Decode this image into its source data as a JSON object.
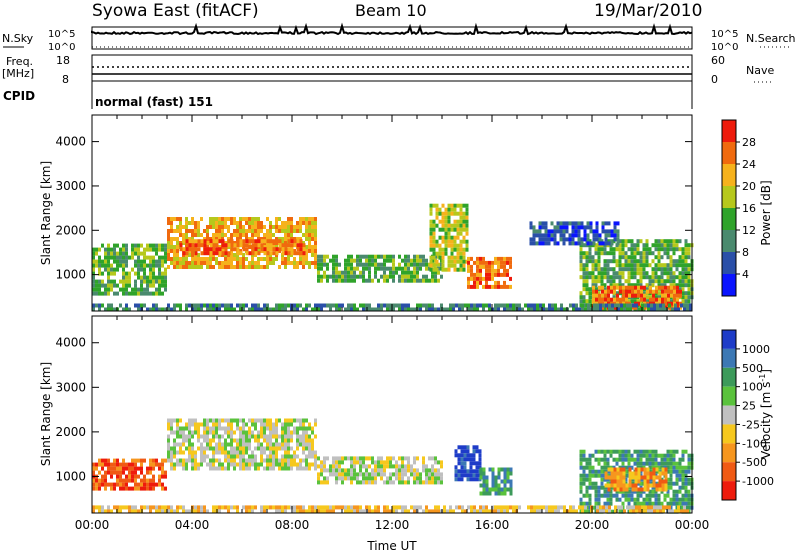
{
  "header": {
    "station": "Syowa East (fitACF)",
    "beam": "Beam 10",
    "date": "19/Mar/2010"
  },
  "top_panels": {
    "nsky_label": "N.Sky",
    "nsky_ticks": [
      "10^5",
      "10^0"
    ],
    "nsearch_label": "N.Search",
    "nsearch_ticks": [
      "10^5",
      "10^0"
    ],
    "freq_label_1": "Freq.",
    "freq_label_2": "[MHz]",
    "freq_ticks": [
      "18",
      "8"
    ],
    "nave_label": "Nave",
    "nave_ticks": [
      "60",
      "0"
    ],
    "cpid_label": "CPID",
    "cpid_value": "normal (fast) 151"
  },
  "chart_data": [
    {
      "type": "heatmap",
      "name": "power",
      "title": "",
      "xlabel": "",
      "ylabel": "Slant Range [km]",
      "xlim": [
        0,
        24
      ],
      "ylim": [
        180,
        4600
      ],
      "yticks": [
        "1000",
        "2000",
        "3000",
        "4000"
      ],
      "colorbar_label": "Power [dB]",
      "colorbar_ticks": [
        "4",
        "8",
        "12",
        "16",
        "20",
        "24",
        "28"
      ],
      "colors": [
        "#0a14ff",
        "#2a4fa8",
        "#4a8a6e",
        "#2fa32a",
        "#b6c81c",
        "#f6b21c",
        "#f06a0e",
        "#ee1b0c"
      ],
      "regions": [
        {
          "t0": 0.0,
          "t1": 3.0,
          "r0": 600,
          "r1": 1700,
          "level": 3
        },
        {
          "t0": 3.0,
          "t1": 9.0,
          "r0": 1200,
          "r1": 2300,
          "level": 5
        },
        {
          "t0": 3.5,
          "t1": 8.5,
          "r0": 1450,
          "r1": 1800,
          "level": 6
        },
        {
          "t0": 9.0,
          "t1": 14.0,
          "r0": 850,
          "r1": 1450,
          "level": 3
        },
        {
          "t0": 13.5,
          "t1": 15.0,
          "r0": 1100,
          "r1": 2600,
          "level": 4
        },
        {
          "t0": 15.0,
          "t1": 16.8,
          "r0": 700,
          "r1": 1400,
          "level": 6
        },
        {
          "t0": 19.5,
          "t1": 24.0,
          "r0": 250,
          "r1": 1800,
          "level": 3
        },
        {
          "t0": 20.0,
          "t1": 23.5,
          "r0": 250,
          "r1": 750,
          "level": 6
        },
        {
          "t0": 17.5,
          "t1": 21.0,
          "r0": 1700,
          "r1": 2200,
          "level": 1
        },
        {
          "t0": 0.0,
          "t1": 24.0,
          "r0": 180,
          "r1": 350,
          "level": 2
        }
      ]
    },
    {
      "type": "heatmap",
      "name": "velocity",
      "title": "",
      "xlabel": "Time UT",
      "ylabel": "Slant Range [km]",
      "xlim": [
        0,
        24
      ],
      "ylim": [
        180,
        4600
      ],
      "xticks": [
        "00:00",
        "04:00",
        "08:00",
        "12:00",
        "16:00",
        "20:00",
        "00:00"
      ],
      "yticks": [
        "1000",
        "2000",
        "3000",
        "4000"
      ],
      "colorbar_label": "Velocity [m s",
      "colorbar_exponent": "-1",
      "colorbar_unit_close": "]",
      "colorbar_ticks": [
        "1000",
        "500",
        "100",
        "25",
        "-25",
        "-100",
        "-500",
        "-1000"
      ],
      "colors": [
        "#1e3cc8",
        "#3c78b4",
        "#3c9a5a",
        "#5ac23c",
        "#c0c0c0",
        "#f6c81e",
        "#f6961e",
        "#f05a14",
        "#ee1b0c"
      ],
      "regions": [
        {
          "t0": 0.0,
          "t1": 3.0,
          "r0": 700,
          "r1": 1400,
          "level": 7
        },
        {
          "t0": 3.0,
          "t1": 9.0,
          "r0": 1200,
          "r1": 2300,
          "level": 4
        },
        {
          "t0": 9.0,
          "t1": 14.0,
          "r0": 850,
          "r1": 1450,
          "level": 4
        },
        {
          "t0": 14.5,
          "t1": 15.5,
          "r0": 900,
          "r1": 1700,
          "level": 0
        },
        {
          "t0": 15.5,
          "t1": 16.8,
          "r0": 650,
          "r1": 1200,
          "level": 2
        },
        {
          "t0": 19.5,
          "t1": 24.0,
          "r0": 250,
          "r1": 1600,
          "level": 2
        },
        {
          "t0": 20.5,
          "t1": 23.0,
          "r0": 700,
          "r1": 1200,
          "level": 6
        },
        {
          "t0": 0.0,
          "t1": 24.0,
          "r0": 180,
          "r1": 350,
          "level": 5
        }
      ]
    }
  ]
}
